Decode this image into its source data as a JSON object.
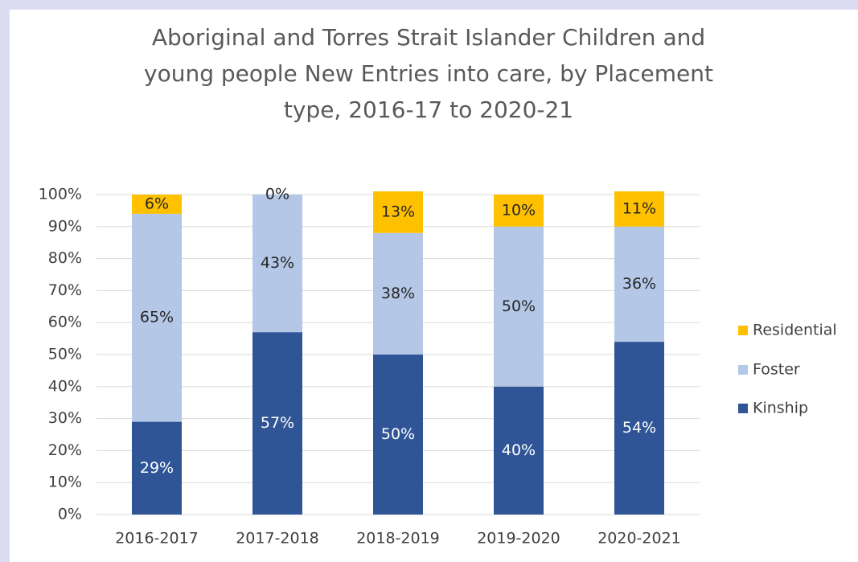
{
  "chart_data": {
    "type": "stacked_bar",
    "title": "Aboriginal and Torres Strait Islander Children and young people New Entries into care, by Placement type, 2016-17 to 2020-21",
    "categories": [
      "2016-2017",
      "2017-2018",
      "2018-2019",
      "2019-2020",
      "2020-2021"
    ],
    "series": [
      {
        "name": "Kinship",
        "color": "#2f5597",
        "values": [
          29,
          57,
          50,
          40,
          54
        ],
        "value_labels": [
          "29%",
          "57%",
          "50%",
          "40%",
          "54%"
        ]
      },
      {
        "name": "Foster",
        "color": "#b4c7e7",
        "values": [
          65,
          43,
          38,
          50,
          36
        ],
        "value_labels": [
          "65%",
          "43%",
          "38%",
          "50%",
          "36%"
        ]
      },
      {
        "name": "Residential",
        "color": "#ffc000",
        "values": [
          6,
          0,
          13,
          10,
          11
        ],
        "value_labels": [
          "6%",
          "0%",
          "13%",
          "10%",
          "11%"
        ]
      }
    ],
    "ylim": [
      0,
      100
    ],
    "yticks": [
      {
        "value": 0,
        "label": "0%"
      },
      {
        "value": 10,
        "label": "10%"
      },
      {
        "value": 20,
        "label": "20%"
      },
      {
        "value": 30,
        "label": "30%"
      },
      {
        "value": 40,
        "label": "40%"
      },
      {
        "value": 50,
        "label": "50%"
      },
      {
        "value": 60,
        "label": "60%"
      },
      {
        "value": 70,
        "label": "70%"
      },
      {
        "value": 80,
        "label": "80%"
      },
      {
        "value": 90,
        "label": "90%"
      },
      {
        "value": 100,
        "label": "100%"
      }
    ],
    "grid": true,
    "legend": "right"
  }
}
